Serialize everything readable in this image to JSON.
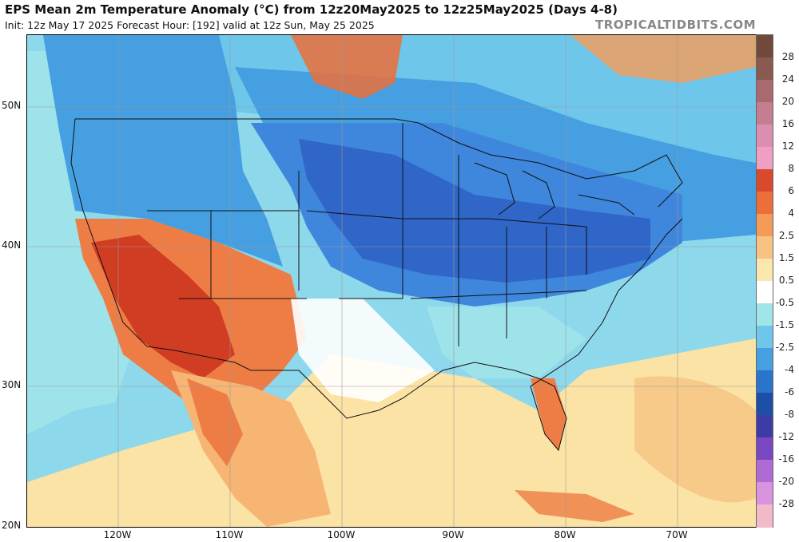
{
  "header": {
    "title": "EPS Mean 2m Temperature Anomaly (°C) from 12z20May2025 to 12z25May2025 (Days 4-8)",
    "subtitle": "Init: 12z May 17 2025   Forecast Hour: [192]   valid at 12z Sun, May 25 2025",
    "credit": "TROPICALTIDBITS.COM"
  },
  "map": {
    "lat_labels": [
      "50N",
      "40N",
      "30N",
      "20N"
    ],
    "lon_labels": [
      "120W",
      "110W",
      "100W",
      "90W",
      "80W",
      "70W"
    ],
    "extent": {
      "lon_min": -128.2,
      "lon_max": -63.2,
      "lat_min": 20,
      "lat_max": 55
    }
  },
  "colorbar": {
    "labels": [
      "28",
      "24",
      "20",
      "16",
      "12",
      "8",
      "6",
      "4",
      "2.5",
      "1.5",
      "0.5",
      "-0.5",
      "-1.5",
      "-2.5",
      "-4",
      "-6",
      "-8",
      "-12",
      "-16",
      "-20",
      "-28"
    ],
    "colors": [
      "#6f4a3a",
      "#8a5a52",
      "#a86a6e",
      "#c47e90",
      "#dc8eb0",
      "#ef9fc3",
      "#d94a2c",
      "#ec6e3a",
      "#f59b58",
      "#f8c382",
      "#fbe7ad",
      "#ffffff",
      "#9fe6ea",
      "#6ec7eb",
      "#459fe0",
      "#2a74cc",
      "#1e4fa8",
      "#3d3ba5",
      "#7a47c2",
      "#b06ad4",
      "#d994df",
      "#f2b9c9"
    ]
  },
  "anomaly_regions": {
    "strong_warm": "#d03d22",
    "warm": "#ee7d45",
    "mild_warm": "#f7b574",
    "slight_warm": "#fbe3a6",
    "neutral": "#ffffff",
    "slight_cool": "#9fe3ea",
    "cool": "#5fb6ea",
    "cold": "#3f86dd",
    "very_cold": "#2f66c8"
  }
}
